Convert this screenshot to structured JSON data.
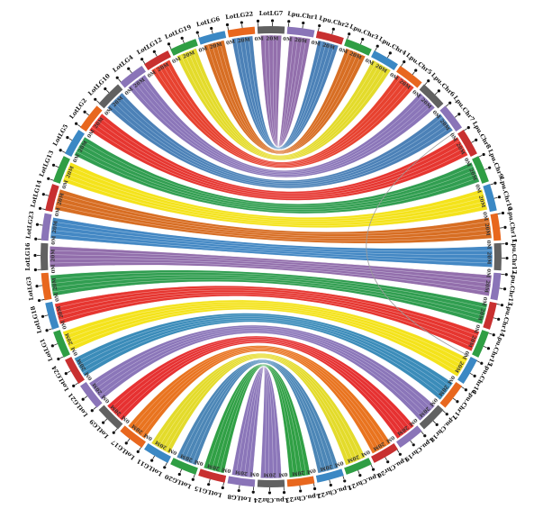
{
  "chart_data": {
    "type": "circos",
    "ticks": [
      "0M",
      "20M"
    ],
    "palette": [
      "#e53030",
      "#3b88c4",
      "#f4e21a",
      "#2f9e44",
      "#8a74b8",
      "#e8671e",
      "#c83030",
      "#616161",
      "#c8c8c8"
    ],
    "chromosomes": [
      {
        "name": "LotLG7",
        "color": "#616161",
        "band": "#e53030"
      },
      {
        "name": "Lpu.Chr1",
        "color": "#8a74b8",
        "band": "#8a74b8"
      },
      {
        "name": "Lpu.Chr2",
        "color": "#c83030",
        "band": "#e53030"
      },
      {
        "name": "Lpu.Chr3",
        "color": "#2f9e44",
        "band": "#2f9e44"
      },
      {
        "name": "Lpu.Chr4",
        "color": "#3b88c4",
        "band": "#3b88c4"
      },
      {
        "name": "Lpu.Chr5",
        "color": "#e8671e",
        "band": "#f4e21a"
      },
      {
        "name": "Lpu.Chr6",
        "color": "#616161",
        "band": "#8a74b8"
      },
      {
        "name": "Lpu.Chr7",
        "color": "#8a74b8",
        "band": "#e53030"
      },
      {
        "name": "Lpu.Chr8",
        "color": "#c83030",
        "band": "#e8671e"
      },
      {
        "name": "Lpu.Chr9",
        "color": "#2f9e44",
        "band": "#3b88c4"
      },
      {
        "name": "Lpu.Chr10",
        "color": "#3b88c4",
        "band": "#f4e21a"
      },
      {
        "name": "Lpu.Chr11",
        "color": "#e8671e",
        "band": "#2f9e44"
      },
      {
        "name": "Lpu.Chr12",
        "color": "#616161",
        "band": "#8a74b8"
      },
      {
        "name": "Lpu.Chr13",
        "color": "#8a74b8",
        "band": "#e53030"
      },
      {
        "name": "Lpu.Chr14",
        "color": "#c83030",
        "band": "#3b88c4"
      },
      {
        "name": "Lpu.Chr15",
        "color": "#2f9e44",
        "band": "#e8671e"
      },
      {
        "name": "Lpu.Chr16",
        "color": "#3b88c4",
        "band": "#f4e21a"
      },
      {
        "name": "Lpu.Chr17",
        "color": "#e8671e",
        "band": "#2f9e44"
      },
      {
        "name": "Lpu.Chr18",
        "color": "#616161",
        "band": "#8a74b8"
      },
      {
        "name": "Lpu.Chr19",
        "color": "#8a74b8",
        "band": "#e53030"
      },
      {
        "name": "Lpu.Chr20",
        "color": "#c83030",
        "band": "#f4e21a"
      },
      {
        "name": "Lpu.Chr21",
        "color": "#2f9e44",
        "band": "#3b88c4"
      },
      {
        "name": "Lpu.Chr22",
        "color": "#3b88c4",
        "band": "#e8671e"
      },
      {
        "name": "Lpu.Chr23",
        "color": "#e8671e",
        "band": "#2f9e44"
      },
      {
        "name": "Lpu.Chr24",
        "color": "#616161",
        "band": "#8a74b8"
      },
      {
        "name": "LotLG8",
        "color": "#8a74b8",
        "band": "#8a74b8"
      },
      {
        "name": "LotLG15",
        "color": "#c83030",
        "band": "#2f9e44"
      },
      {
        "name": "LotLG20",
        "color": "#2f9e44",
        "band": "#3b88c4"
      },
      {
        "name": "LotLG11",
        "color": "#3b88c4",
        "band": "#f4e21a"
      },
      {
        "name": "LotLG17",
        "color": "#e8671e",
        "band": "#e8671e"
      },
      {
        "name": "LotLG9",
        "color": "#616161",
        "band": "#e53030"
      },
      {
        "name": "LotLG21",
        "color": "#8a74b8",
        "band": "#8a74b8"
      },
      {
        "name": "LotLG24",
        "color": "#c83030",
        "band": "#3b88c4"
      },
      {
        "name": "LotLG1",
        "color": "#2f9e44",
        "band": "#f4e21a"
      },
      {
        "name": "LotLG18",
        "color": "#3b88c4",
        "band": "#e53030"
      },
      {
        "name": "LotLG3",
        "color": "#e8671e",
        "band": "#2f9e44"
      },
      {
        "name": "LotLG16",
        "color": "#616161",
        "band": "#8a74b8"
      },
      {
        "name": "LotLG23",
        "color": "#8a74b8",
        "band": "#3b88c4"
      },
      {
        "name": "LotLG14",
        "color": "#c83030",
        "band": "#e8671e"
      },
      {
        "name": "LotLG13",
        "color": "#2f9e44",
        "band": "#f4e21a"
      },
      {
        "name": "LotLG5",
        "color": "#3b88c4",
        "band": "#2f9e44"
      },
      {
        "name": "LotLG2",
        "color": "#e8671e",
        "band": "#e53030"
      },
      {
        "name": "LotLG10",
        "color": "#616161",
        "band": "#3b88c4"
      },
      {
        "name": "LotLG4",
        "color": "#8a74b8",
        "band": "#8a74b8"
      },
      {
        "name": "LotLG12",
        "color": "#c83030",
        "band": "#e53030"
      },
      {
        "name": "LotLG19",
        "color": "#2f9e44",
        "band": "#f4e21a"
      },
      {
        "name": "LotLG6",
        "color": "#3b88c4",
        "band": "#e8671e"
      },
      {
        "name": "LotLG22",
        "color": "#e8671e",
        "band": "#3b88c4"
      }
    ]
  }
}
